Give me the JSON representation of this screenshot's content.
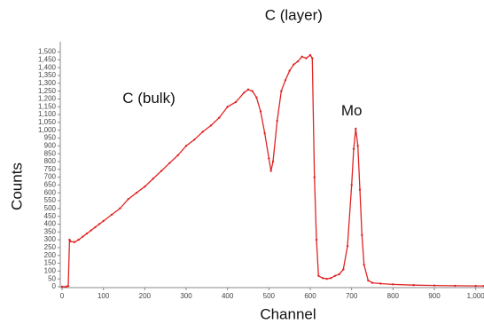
{
  "chart_data": {
    "type": "line",
    "xlabel": "Channel",
    "ylabel": "Counts",
    "annotations": [
      {
        "text": "C (layer)",
        "x": 560,
        "y": 1730
      },
      {
        "text": "C (bulk)",
        "x": 210,
        "y": 1200
      },
      {
        "text": "Mo",
        "x": 700,
        "y": 1120
      }
    ],
    "x": [
      0,
      10,
      15,
      18,
      20,
      30,
      40,
      50,
      60,
      70,
      80,
      90,
      100,
      120,
      140,
      160,
      180,
      200,
      220,
      240,
      260,
      280,
      300,
      320,
      340,
      360,
      380,
      400,
      420,
      440,
      450,
      460,
      470,
      480,
      490,
      500,
      505,
      510,
      520,
      530,
      540,
      550,
      560,
      570,
      580,
      590,
      600,
      605,
      610,
      615,
      620,
      630,
      640,
      650,
      660,
      670,
      680,
      690,
      700,
      705,
      710,
      715,
      720,
      725,
      730,
      740,
      750,
      770,
      800,
      850,
      900,
      950,
      1000,
      1020
    ],
    "series": [
      {
        "name": "Counts",
        "color": "#e02424",
        "values": [
          0,
          0,
          5,
          300,
          290,
          285,
          300,
          320,
          340,
          360,
          380,
          400,
          420,
          460,
          500,
          560,
          600,
          640,
          690,
          740,
          790,
          840,
          900,
          940,
          990,
          1030,
          1080,
          1150,
          1180,
          1240,
          1260,
          1250,
          1210,
          1120,
          980,
          820,
          740,
          800,
          1060,
          1250,
          1320,
          1380,
          1420,
          1440,
          1470,
          1460,
          1480,
          1460,
          700,
          300,
          70,
          55,
          50,
          55,
          70,
          80,
          110,
          260,
          650,
          880,
          1010,
          900,
          620,
          330,
          140,
          40,
          25,
          20,
          15,
          10,
          8,
          6,
          5,
          5
        ]
      }
    ],
    "xlim": [
      0,
      1020
    ],
    "ylim": [
      0,
      1560
    ],
    "xticks": [
      0,
      100,
      200,
      300,
      400,
      500,
      600,
      700,
      800,
      900,
      {
        "value": 1000,
        "label": "1,000"
      }
    ],
    "yticks": [
      0,
      50,
      100,
      150,
      200,
      250,
      300,
      350,
      400,
      450,
      500,
      550,
      600,
      650,
      700,
      750,
      800,
      850,
      900,
      950,
      {
        "value": 1000,
        "label": "1,000"
      },
      {
        "value": 1050,
        "label": "1,050"
      },
      {
        "value": 1100,
        "label": "1,100"
      },
      {
        "value": 1150,
        "label": "1,150"
      },
      {
        "value": 1200,
        "label": "1,200"
      },
      {
        "value": 1250,
        "label": "1,250"
      },
      {
        "value": 1300,
        "label": "1,300"
      },
      {
        "value": 1350,
        "label": "1,350"
      },
      {
        "value": 1400,
        "label": "1,400"
      },
      {
        "value": 1450,
        "label": "1,450"
      },
      {
        "value": 1500,
        "label": "1,500"
      }
    ]
  }
}
